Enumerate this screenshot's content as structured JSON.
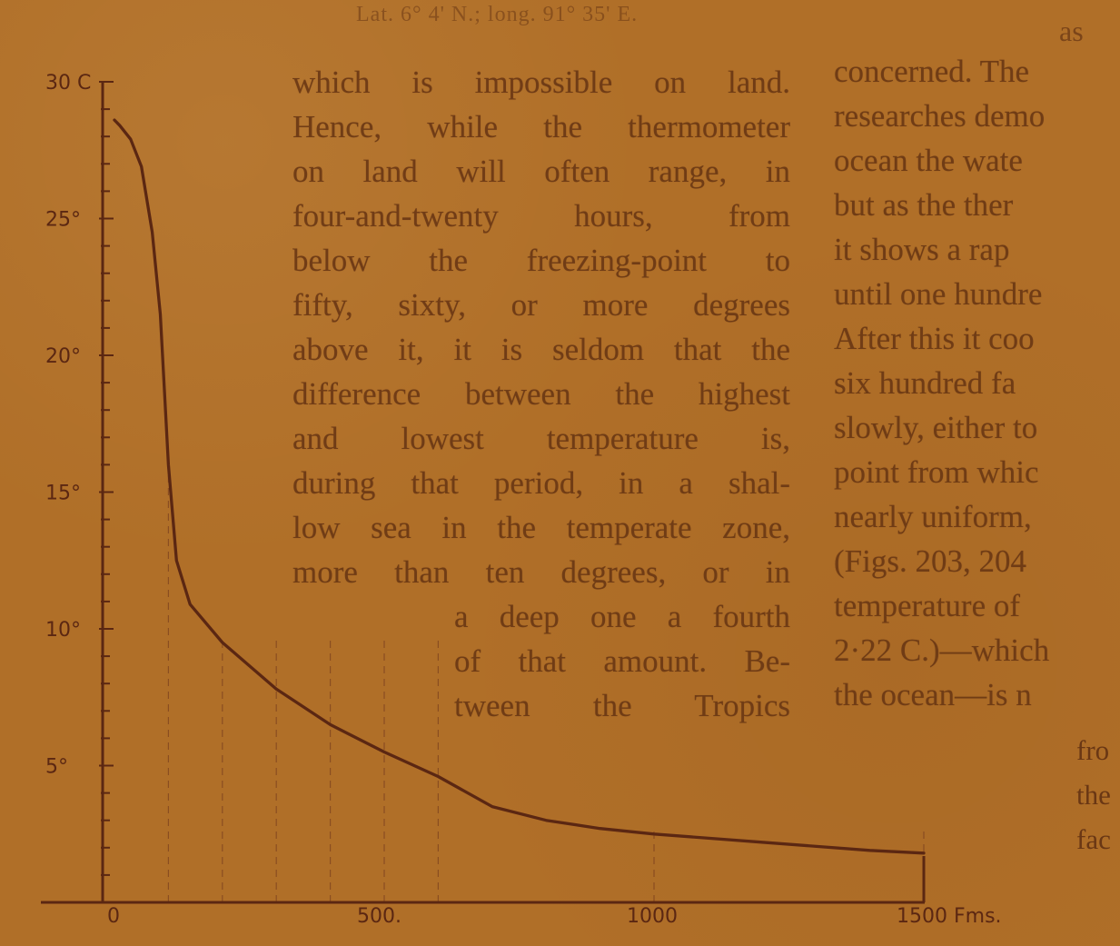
{
  "page": {
    "running_head": "Lat. 6° 4' N.; long. 91° 35' E.",
    "top_right_fragment": "as"
  },
  "chart_data": {
    "type": "line",
    "title": "",
    "xlabel": "",
    "ylabel": "",
    "x_unit_label": "Fms.",
    "y_unit_label": "C",
    "xlim": [
      0,
      1500
    ],
    "ylim": [
      0,
      30
    ],
    "x_ticks": [
      {
        "value": 0,
        "label": "0"
      },
      {
        "value": 500,
        "label": "500."
      },
      {
        "value": 1000,
        "label": "1000"
      },
      {
        "value": 1500,
        "label": "1500 Fms."
      }
    ],
    "y_ticks": [
      {
        "value": 30,
        "label": "30 C"
      },
      {
        "value": 25,
        "label": "25°"
      },
      {
        "value": 20,
        "label": "20°"
      },
      {
        "value": 15,
        "label": "15°"
      },
      {
        "value": 10,
        "label": "10°"
      },
      {
        "value": 5,
        "label": "5°"
      }
    ],
    "minor_y_step": 1,
    "grid_x": [
      100,
      200,
      300,
      400,
      500,
      600,
      1000,
      1500
    ],
    "series": [
      {
        "values": [
          {
            "x": 0,
            "y": 28.6
          },
          {
            "x": 10,
            "y": 28.4
          },
          {
            "x": 30,
            "y": 27.9
          },
          {
            "x": 50,
            "y": 26.9
          },
          {
            "x": 70,
            "y": 24.5
          },
          {
            "x": 85,
            "y": 21.5
          },
          {
            "x": 100,
            "y": 16.0
          },
          {
            "x": 115,
            "y": 12.5
          },
          {
            "x": 140,
            "y": 10.9
          },
          {
            "x": 200,
            "y": 9.5
          },
          {
            "x": 300,
            "y": 7.8
          },
          {
            "x": 400,
            "y": 6.5
          },
          {
            "x": 500,
            "y": 5.5
          },
          {
            "x": 600,
            "y": 4.6
          },
          {
            "x": 700,
            "y": 3.5
          },
          {
            "x": 800,
            "y": 3.0
          },
          {
            "x": 900,
            "y": 2.7
          },
          {
            "x": 1000,
            "y": 2.5
          },
          {
            "x": 1200,
            "y": 2.2
          },
          {
            "x": 1400,
            "y": 1.9
          },
          {
            "x": 1500,
            "y": 1.8
          }
        ]
      }
    ]
  },
  "text": {
    "left_column": [
      "which is impossible on land.",
      "Hence, while the thermometer",
      "on land will often range, in",
      "four-and-twenty hours, from",
      "below the freezing-point to",
      "fifty, sixty, or more degrees",
      "above it, it is seldom that the",
      "difference between the highest",
      "and lowest temperature is,",
      "during that period, in a shal-",
      "low sea in the temperate zone,",
      "more than ten degrees, or in",
      "a deep one a fourth",
      "of that amount. Be-",
      "tween the Tropics"
    ],
    "right_column": [
      "concerned. The",
      "researches demo",
      "ocean the wate",
      "but as the ther",
      "it shows a rap",
      "until one hundre",
      "After this it coo",
      "six hundred fa",
      "slowly, either to",
      "point from whic",
      "nearly uniform,",
      "(Figs. 203, 204",
      "temperature of",
      "2·22 C.)—which",
      "the ocean—is n"
    ],
    "tail_column": [
      "fro",
      "the",
      "fac"
    ]
  }
}
